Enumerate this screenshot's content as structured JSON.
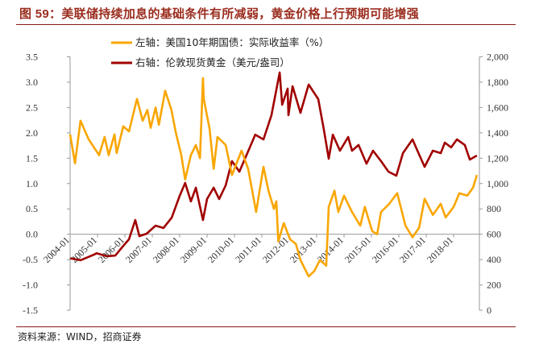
{
  "title": {
    "prefix": "图 59：",
    "text": "美联储持续加息的基础条件有所减弱，黄金价格上行预期可能增强"
  },
  "source": "资料来源：WIND，招商证券",
  "colors": {
    "title": "#9b2d1f",
    "yield": "#f9a602",
    "gold": "#a00000",
    "rule": "#8b1a1a"
  },
  "chart_data": {
    "type": "line",
    "title": "美联储持续加息的基础条件有所减弱，黄金价格上行预期可能增强",
    "xlabel": "",
    "legend_position": "top-center",
    "x_tick_labels": [
      "2004-01",
      "2005-01",
      "2006-01",
      "2007-01",
      "2008-01",
      "2009-01",
      "2010-01",
      "2011-01",
      "2012-01",
      "2013-01",
      "2014-01",
      "2015-01",
      "2016-01",
      "2017-01",
      "2018-01"
    ],
    "x_range": [
      2004.0,
      2018.9
    ],
    "y_left": {
      "label": "左轴：美国10年期国债：实际收益率（%）",
      "range": [
        -1.5,
        3.5
      ],
      "ticks": [
        "3.5",
        "3.0",
        "2.5",
        "2.0",
        "1.5",
        "1.0",
        "0.5",
        "0.0",
        "-0.5",
        "-1.0",
        "-1.5"
      ]
    },
    "y_right": {
      "label": "右轴：伦敦现货黄金（美元/盎司）",
      "range": [
        0,
        2000
      ],
      "ticks": [
        "2,000",
        "1,800",
        "1,600",
        "1,400",
        "1,200",
        "1,000",
        "800",
        "600",
        "400",
        "200",
        "0"
      ]
    },
    "series": [
      {
        "name": "左轴：美国10年期国债：实际收益率（%）",
        "axis": "left",
        "x": [
          2004.0,
          2004.18,
          2004.38,
          2004.68,
          2005.06,
          2005.26,
          2005.41,
          2005.62,
          2005.7,
          2005.94,
          2006.15,
          2006.44,
          2006.65,
          2006.82,
          2006.94,
          2007.12,
          2007.24,
          2007.47,
          2007.7,
          2007.85,
          2008.06,
          2008.2,
          2008.41,
          2008.59,
          2008.74,
          2008.85,
          2008.88,
          2009.09,
          2009.24,
          2009.38,
          2009.68,
          2009.91,
          2010.26,
          2010.5,
          2010.79,
          2011.06,
          2011.24,
          2011.44,
          2011.53,
          2011.6,
          2011.8,
          2012.03,
          2012.24,
          2012.41,
          2012.71,
          2012.91,
          2013.12,
          2013.35,
          2013.44,
          2013.65,
          2013.79,
          2014.0,
          2014.29,
          2014.59,
          2014.76,
          2015.03,
          2015.21,
          2015.35,
          2015.65,
          2015.94,
          2016.24,
          2016.5,
          2016.74,
          2016.94,
          2017.24,
          2017.53,
          2017.71,
          2018.0,
          2018.21,
          2018.5,
          2018.71,
          2018.85
        ],
        "values": [
          1.97,
          1.4,
          2.24,
          1.87,
          1.56,
          1.92,
          1.56,
          1.97,
          1.6,
          2.13,
          2.03,
          2.67,
          2.24,
          2.45,
          2.1,
          2.5,
          2.16,
          2.83,
          2.45,
          2.03,
          1.56,
          1.08,
          1.56,
          1.76,
          1.5,
          3.08,
          2.67,
          2.08,
          1.29,
          1.92,
          1.76,
          1.17,
          1.65,
          1.29,
          0.44,
          1.33,
          0.86,
          0.5,
          0.65,
          -0.14,
          0.22,
          -0.1,
          -0.19,
          -0.51,
          -0.83,
          -0.73,
          -0.51,
          -0.62,
          0.54,
          0.86,
          0.44,
          0.76,
          0.44,
          0.17,
          0.54,
          0.06,
          0.0,
          0.44,
          0.6,
          0.81,
          0.17,
          -0.06,
          0.13,
          0.7,
          0.38,
          0.6,
          0.33,
          0.54,
          0.81,
          0.76,
          0.92,
          1.17
        ]
      },
      {
        "name": "右轴：伦敦现货黄金（美元/盎司）",
        "axis": "right",
        "x": [
          2004.0,
          2004.38,
          2004.88,
          2004.97,
          2005.35,
          2005.65,
          2005.91,
          2006.15,
          2006.38,
          2006.53,
          2006.79,
          2007.12,
          2007.41,
          2007.71,
          2008.0,
          2008.2,
          2008.41,
          2008.59,
          2008.85,
          2009.0,
          2009.24,
          2009.44,
          2009.68,
          2009.91,
          2010.18,
          2010.47,
          2010.76,
          2011.06,
          2011.35,
          2011.65,
          2011.74,
          2011.94,
          2011.97,
          2012.12,
          2012.41,
          2012.71,
          2013.06,
          2013.26,
          2013.44,
          2013.59,
          2013.85,
          2014.15,
          2014.29,
          2014.53,
          2014.82,
          2015.06,
          2015.35,
          2015.62,
          2015.91,
          2016.15,
          2016.5,
          2016.68,
          2016.94,
          2017.24,
          2017.53,
          2017.68,
          2017.91,
          2018.12,
          2018.41,
          2018.59,
          2018.85
        ],
        "values": [
          410,
          395,
          440,
          450,
          426,
          432,
          500,
          560,
          712,
          585,
          604,
          668,
          649,
          731,
          903,
          1005,
          859,
          967,
          712,
          878,
          967,
          878,
          986,
          1177,
          1094,
          1240,
          1386,
          1348,
          1539,
          1876,
          1622,
          1749,
          1539,
          1768,
          1558,
          1781,
          1666,
          1431,
          1196,
          1386,
          1259,
          1367,
          1259,
          1304,
          1157,
          1259,
          1177,
          1094,
          1062,
          1240,
          1348,
          1259,
          1132,
          1259,
          1240,
          1323,
          1285,
          1348,
          1304,
          1189,
          1221
        ]
      }
    ]
  }
}
